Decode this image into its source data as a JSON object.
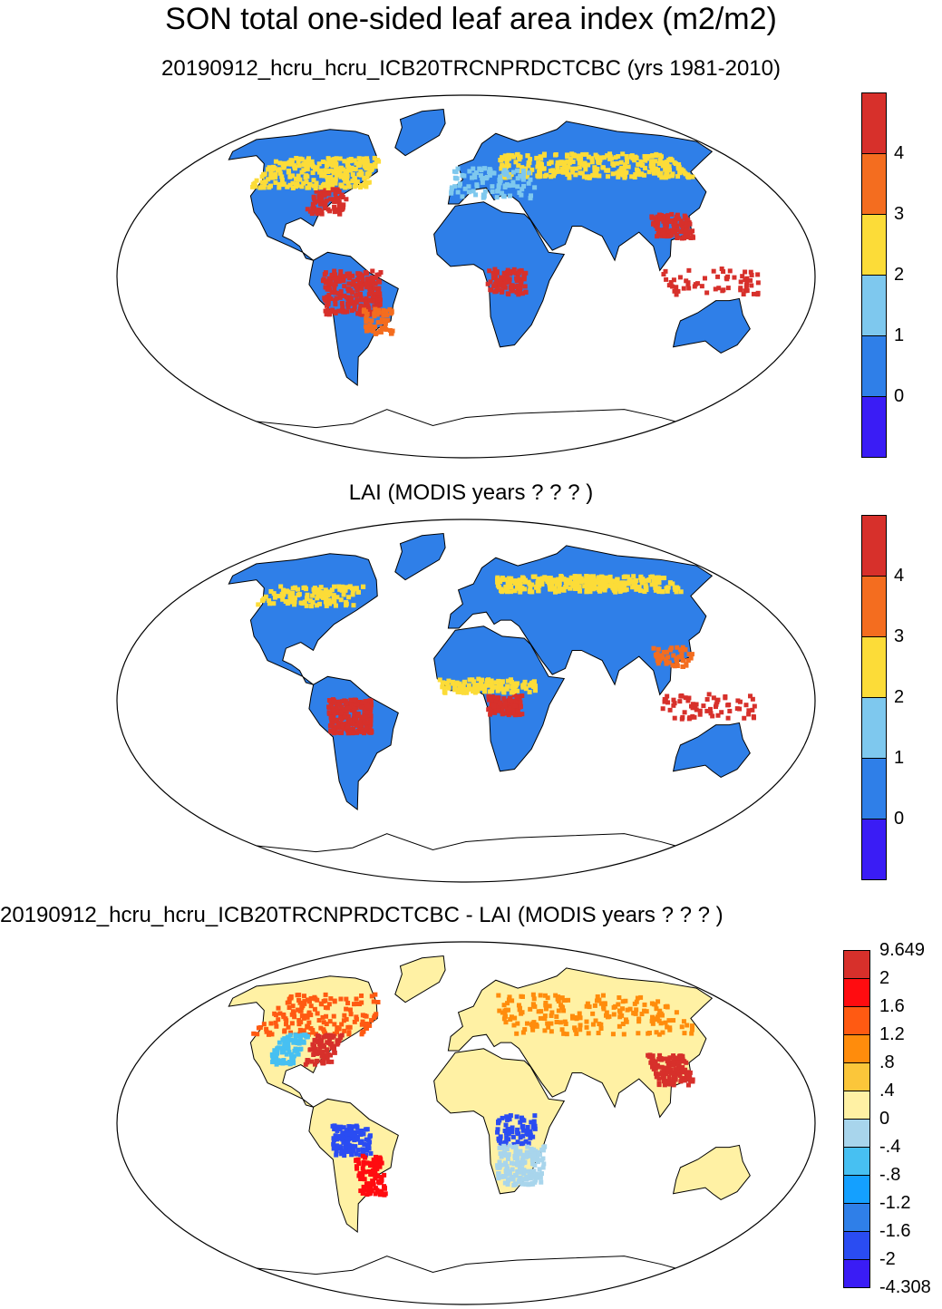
{
  "title": "SON total one-sided leaf area index (m2/m2)",
  "panels": [
    {
      "title": "20190912_hcru_hcru_ICB20TRCNPRDCTCBC (yrs 1981-2010)",
      "colorbar": {
        "colors": [
          "#d7302b",
          "#f46d1f",
          "#fcdc38",
          "#7ec8ee",
          "#2f7fe8",
          "#3a1cf5"
        ],
        "labels": [
          "4",
          "3",
          "2",
          "1",
          "0"
        ]
      }
    },
    {
      "title": "LAI (MODIS years ? ? ? )",
      "colorbar": {
        "colors": [
          "#d7302b",
          "#f46d1f",
          "#fcdc38",
          "#7ec8ee",
          "#2f7fe8",
          "#3a1cf5"
        ],
        "labels": [
          "4",
          "3",
          "2",
          "1",
          "0"
        ]
      }
    },
    {
      "title": "20190912_hcru_hcru_ICB20TRCNPRDCTCBC - LAI (MODIS years ? ? ? )",
      "colorbar": {
        "colors": [
          "#d7302b",
          "#ff0c10",
          "#ff5a12",
          "#ff8c0c",
          "#fbc63a",
          "#fff1a4",
          "#a8d5ec",
          "#47c0f2",
          "#14a0ff",
          "#2f7fe8",
          "#2a4cf2",
          "#3a1cf5"
        ],
        "labels": [
          "9.649",
          "2",
          "1.6",
          "1.2",
          ".8",
          ".4",
          "0",
          "-.4",
          "-.8",
          "-1.2",
          "-1.6",
          "-2",
          "-4.308"
        ]
      }
    }
  ]
}
